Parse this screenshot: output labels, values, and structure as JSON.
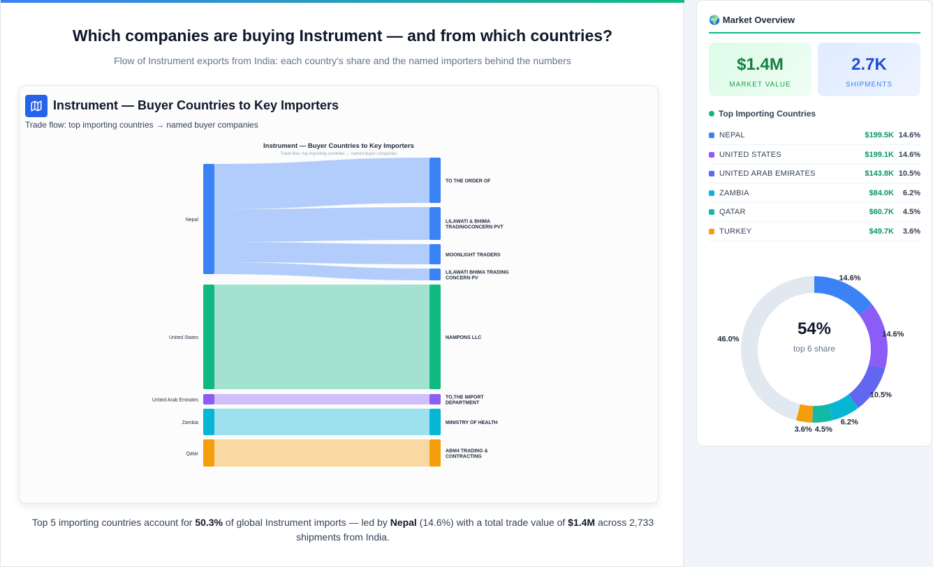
{
  "header": {
    "title": "Which companies are buying Instrument — and from which countries?",
    "subtitle": "Flow of Instrument exports from India: each country's share and the named importers behind the numbers"
  },
  "card": {
    "title": "Instrument — Buyer Countries to Key Importers",
    "subtitle": "Trade flow: top importing countries → named buyer companies",
    "icon": "map-icon"
  },
  "chart_data": {
    "type": "sankey",
    "title": "Instrument — Buyer Countries to Key Importers",
    "subtitle": "Trade flow: top importing countries → named buyer companies",
    "sources": [
      {
        "name": "Nepal",
        "color": "#3b82f6"
      },
      {
        "name": "United States",
        "color": "#10b981"
      },
      {
        "name": "United Arab Emirates",
        "color": "#8b5cf6"
      },
      {
        "name": "Zambia",
        "color": "#06b6d4"
      },
      {
        "name": "Qatar",
        "color": "#f59e0b"
      }
    ],
    "links": [
      {
        "source": "Nepal",
        "target": "TO THE ORDER OF",
        "value": 65
      },
      {
        "source": "Nepal",
        "target": "LILAWATI & BHIMA TRADINGCONCERN PVT",
        "value": 47
      },
      {
        "source": "Nepal",
        "target": "MOONLIGHT TRADERS",
        "value": 29
      },
      {
        "source": "Nepal",
        "target": "LILAWATI BHIMA TRADING CONCERN PV",
        "value": 17
      },
      {
        "source": "United States",
        "target": "NAMPONS LLC",
        "value": 150
      },
      {
        "source": "United Arab Emirates",
        "target": "TO,THE IMPORT DEPARTMENT",
        "value": 15
      },
      {
        "source": "Zambia",
        "target": "MINISTRY OF HEALTH",
        "value": 38
      },
      {
        "source": "Qatar",
        "target": "ABM4 TRADING & CONTRACTING",
        "value": 39
      }
    ]
  },
  "footer": {
    "p1": "Top 5 importing countries account for ",
    "share": "50.3%",
    "p2": " of global Instrument imports — led by ",
    "leader": "Nepal",
    "p3": " (14.6%) with a total trade value of ",
    "total": "$1.4M",
    "p4": " across 2,733 shipments from India."
  },
  "sidebar": {
    "title": "🌍 Market Overview",
    "kpis": [
      {
        "value": "$1.4M",
        "label": "MARKET VALUE"
      },
      {
        "value": "2.7K",
        "label": "SHIPMENTS"
      }
    ],
    "section": "Top Importing Countries",
    "countries": [
      {
        "name": "NEPAL",
        "value": "$199.5K",
        "pct": "14.6%",
        "share": 14.6,
        "color": "#3b82f6"
      },
      {
        "name": "UNITED STATES",
        "value": "$199.1K",
        "pct": "14.6%",
        "share": 14.6,
        "color": "#8b5cf6"
      },
      {
        "name": "UNITED ARAB EMIRATES",
        "value": "$143.8K",
        "pct": "10.5%",
        "share": 10.5,
        "color": "#6366f1"
      },
      {
        "name": "ZAMBIA",
        "value": "$84.0K",
        "pct": "6.2%",
        "share": 6.2,
        "color": "#06b6d4"
      },
      {
        "name": "QATAR",
        "value": "$60.7K",
        "pct": "4.5%",
        "share": 4.5,
        "color": "#14b8a6"
      },
      {
        "name": "TURKEY",
        "value": "$49.7K",
        "pct": "3.6%",
        "share": 3.6,
        "color": "#f59e0b"
      }
    ],
    "donut": {
      "center_value": "54%",
      "center_label": "top 6 share",
      "rest_share": 46.0,
      "rest_label": "46.0%",
      "rest_color": "#e2e8f0"
    }
  }
}
